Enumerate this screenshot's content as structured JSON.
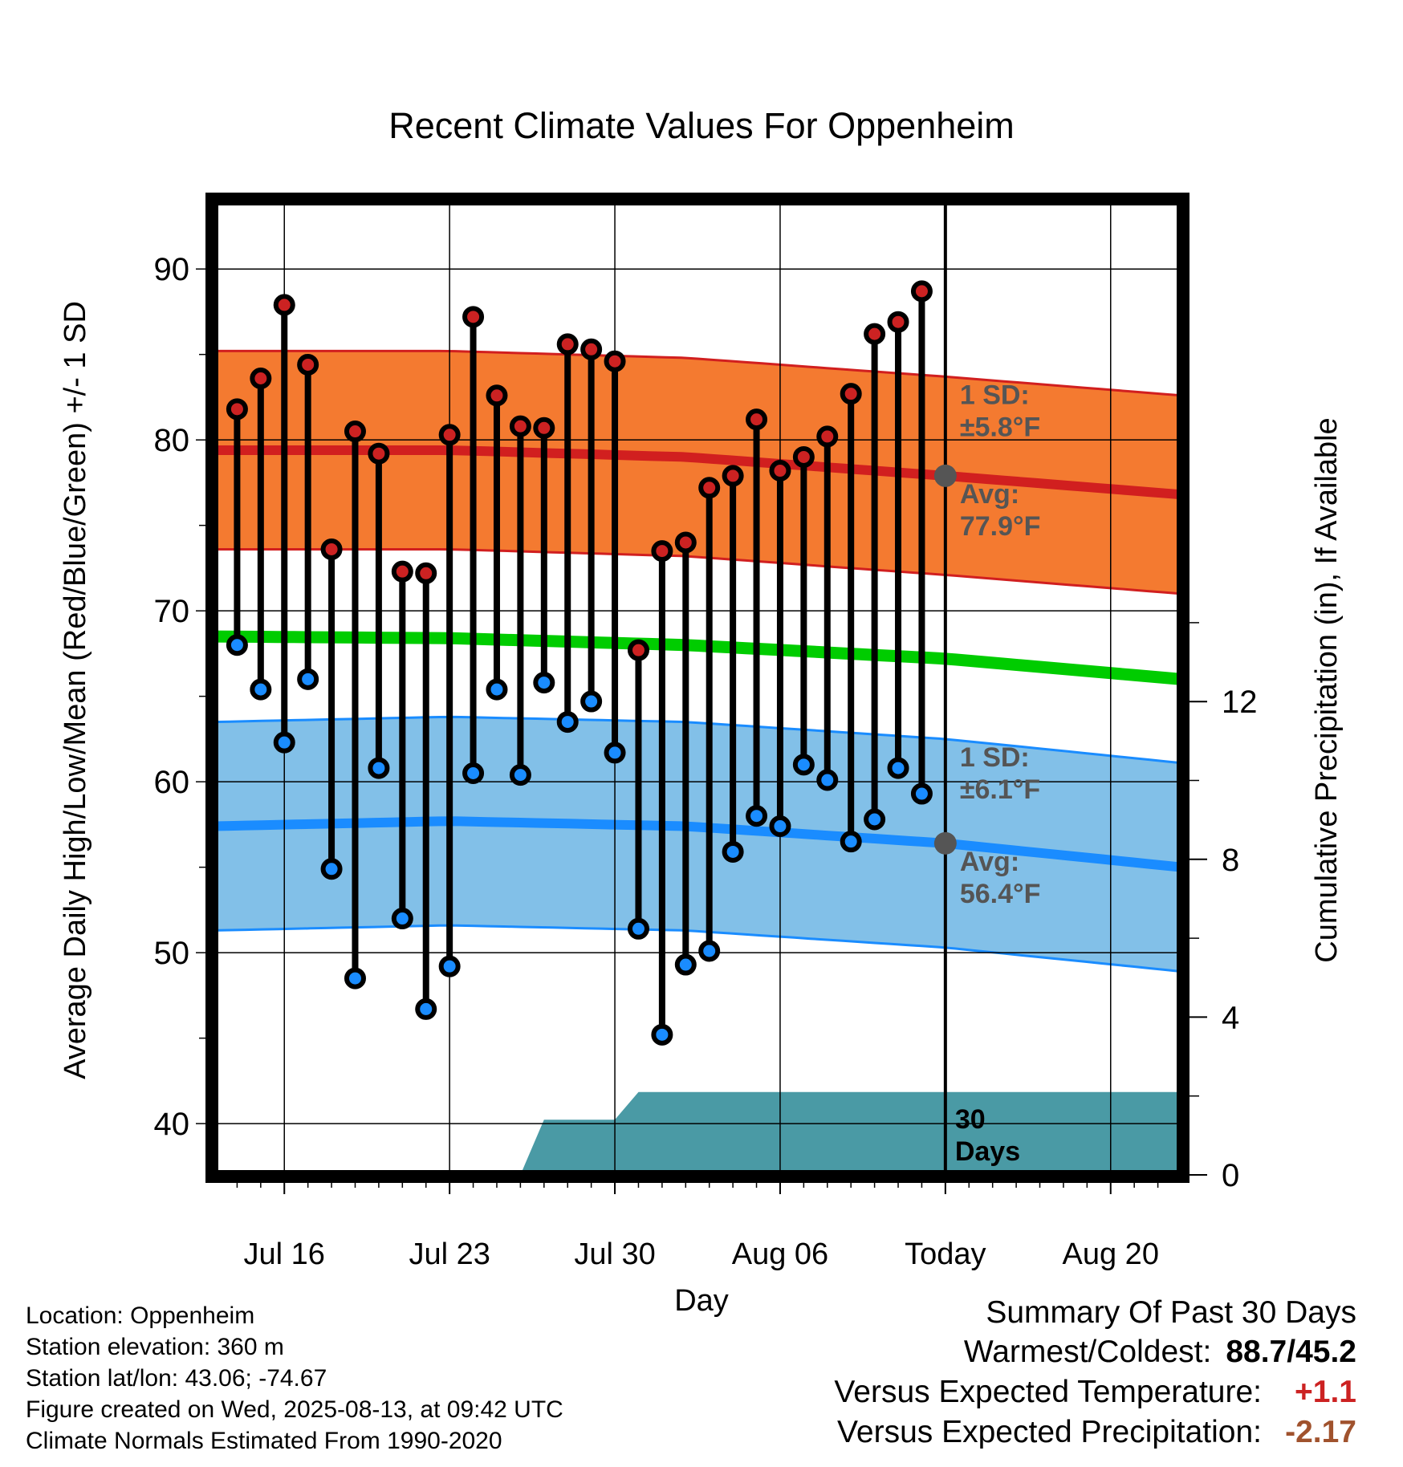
{
  "chart_data": {
    "type": "line",
    "title": "Recent Climate Values For Oppenheim",
    "xlabel": "Day",
    "ylabel": "Average Daily High/Low/Mean (Red/Blue/Green) +/- 1 SD",
    "y2label": "Cumulative Precipitation (in), If Available",
    "ylim": [
      37,
      94
    ],
    "y2lim": [
      0,
      24.7
    ],
    "yticks": [
      "40",
      "50",
      "60",
      "70",
      "80",
      "90"
    ],
    "y2ticks": [
      "0",
      "4",
      "8",
      "12"
    ],
    "x_tick_labels": [
      "Jul 16",
      "Jul 23",
      "Jul 30",
      "Aug 06",
      "Today",
      "Aug 20"
    ],
    "x_tick_days": [
      "2025-07-16",
      "2025-07-23",
      "2025-07-30",
      "2025-08-06",
      "2025-08-13",
      "2025-08-20"
    ],
    "xlim": [
      "2025-07-13",
      "2025-08-23"
    ],
    "grid": true,
    "days": [
      "2025-07-14",
      "2025-07-15",
      "2025-07-16",
      "2025-07-17",
      "2025-07-18",
      "2025-07-19",
      "2025-07-20",
      "2025-07-21",
      "2025-07-22",
      "2025-07-23",
      "2025-07-24",
      "2025-07-25",
      "2025-07-26",
      "2025-07-27",
      "2025-07-28",
      "2025-07-29",
      "2025-07-30",
      "2025-07-31",
      "2025-08-01",
      "2025-08-02",
      "2025-08-03",
      "2025-08-04",
      "2025-08-05",
      "2025-08-06",
      "2025-08-07",
      "2025-08-08",
      "2025-08-09",
      "2025-08-10",
      "2025-08-11",
      "2025-08-12"
    ],
    "daily_high": [
      81.8,
      83.6,
      87.9,
      84.4,
      73.6,
      80.5,
      79.2,
      72.3,
      72.2,
      80.3,
      87.2,
      82.6,
      80.8,
      80.7,
      85.6,
      85.3,
      84.6,
      67.7,
      73.5,
      74.0,
      77.2,
      77.9,
      81.2,
      78.2,
      79.0,
      80.2,
      82.7,
      86.2,
      86.9,
      88.7
    ],
    "daily_low": [
      68.0,
      65.4,
      62.3,
      66.0,
      54.9,
      48.5,
      60.8,
      52.0,
      46.7,
      49.2,
      60.5,
      65.4,
      60.4,
      65.8,
      63.5,
      64.7,
      61.7,
      51.4,
      45.2,
      49.3,
      50.1,
      55.9,
      58.0,
      57.4,
      61.0,
      60.1,
      56.5,
      57.8,
      60.8,
      59.3
    ],
    "normal_high": {
      "days": [
        "2025-07-13",
        "2025-07-23",
        "2025-08-02",
        "2025-08-13",
        "2025-08-23"
      ],
      "mean": [
        79.4,
        79.4,
        79.0,
        77.9,
        76.8
      ],
      "sd": 5.8
    },
    "normal_low": {
      "days": [
        "2025-07-13",
        "2025-07-23",
        "2025-08-02",
        "2025-08-13",
        "2025-08-23"
      ],
      "mean": [
        57.4,
        57.7,
        57.4,
        56.4,
        55.0
      ],
      "sd": 6.1
    },
    "normal_mean": {
      "days": [
        "2025-07-13",
        "2025-07-23",
        "2025-08-02",
        "2025-08-13",
        "2025-08-23"
      ],
      "values": [
        68.5,
        68.4,
        68.0,
        67.2,
        66.0
      ]
    },
    "cumulative_precip": {
      "days": [
        "2025-07-26",
        "2025-07-27",
        "2025-07-30",
        "2025-07-31",
        "2025-08-23"
      ],
      "values": [
        0.0,
        1.4,
        1.4,
        2.1,
        2.1
      ]
    },
    "today": "2025-08-13",
    "annotations": {
      "high_sd": "1 SD:",
      "high_sd_val": "±5.8°F",
      "high_avg": "Avg:",
      "high_avg_val": "77.9°F",
      "low_sd": "1 SD:",
      "low_sd_val": "±6.1°F",
      "low_avg": "Avg:",
      "low_avg_val": "56.4°F",
      "window_line1": "30",
      "window_line2": "Days"
    },
    "colors": {
      "high_band": "#f47a30",
      "high_line": "#d11f1f",
      "low_band": "#82c0e8",
      "low_line": "#1a8cff",
      "mean_line": "#00cc00",
      "precip": "#4a9aa5",
      "high_marker": "#cc2222",
      "low_marker": "#1a8cff"
    }
  },
  "footer": {
    "location": "Location: Oppenheim",
    "elevation": "Station elevation: 360 m",
    "latlon": "Station lat/lon: 43.06; -74.67",
    "created": "Figure created on Wed, 2025-08-13, at 09:42 UTC",
    "normals": "Climate Normals Estimated From 1990-2020"
  },
  "summary": {
    "title": "Summary Of Past 30 Days",
    "warm_cold_label": "Warmest/Coldest:",
    "warm_cold_value": "88.7/45.2",
    "temp_label": "Versus Expected Temperature:",
    "temp_value": "+1.1",
    "temp_color": "#cc2222",
    "precip_label": "Versus Expected Precipitation:",
    "precip_value": "-2.17",
    "precip_color": "#a0522d"
  }
}
